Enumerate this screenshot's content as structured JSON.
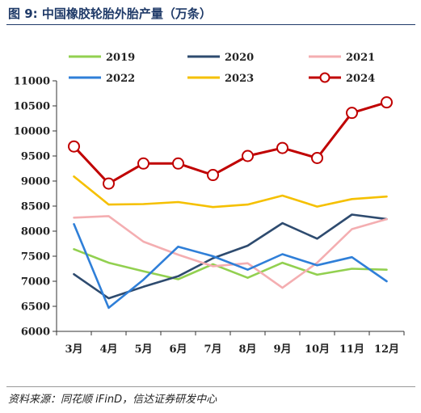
{
  "header": {
    "title": "图 9:  中国橡胶轮胎外胎产量（万条）"
  },
  "footer": {
    "source": "资料来源：同花顺 iFinD，信达证券研发中心"
  },
  "chart_data": {
    "type": "line",
    "title": "",
    "xlabel": "",
    "ylabel": "",
    "categories": [
      "3月",
      "4月",
      "5月",
      "6月",
      "7月",
      "8月",
      "9月",
      "10月",
      "11月",
      "12月"
    ],
    "ylim": [
      6000,
      11000
    ],
    "yticks": [
      6000,
      6500,
      7000,
      7500,
      8000,
      8500,
      9000,
      9500,
      10000,
      10500,
      11000
    ],
    "grid": false,
    "legend_position": "top",
    "series": [
      {
        "name": "2019",
        "color": "#92d050",
        "marker": "none",
        "values": [
          7640,
          7370,
          7200,
          7040,
          7340,
          7070,
          7370,
          7130,
          7250,
          7230
        ]
      },
      {
        "name": "2020",
        "color": "#2e4b6f",
        "marker": "none",
        "values": [
          7140,
          6660,
          6890,
          7100,
          7460,
          7710,
          8160,
          7850,
          8330,
          8240
        ]
      },
      {
        "name": "2021",
        "color": "#f4aeb1",
        "marker": "none",
        "values": [
          8270,
          8300,
          7790,
          7530,
          7300,
          7360,
          6870,
          7370,
          8040,
          8240
        ]
      },
      {
        "name": "2022",
        "color": "#2f7fd8",
        "marker": "none",
        "values": [
          8140,
          6470,
          7030,
          7690,
          7500,
          7230,
          7540,
          7320,
          7480,
          7000
        ]
      },
      {
        "name": "2023",
        "color": "#f5c000",
        "marker": "none",
        "values": [
          9090,
          8530,
          8540,
          8580,
          8480,
          8530,
          8710,
          8490,
          8640,
          8690
        ]
      },
      {
        "name": "2024",
        "color": "#c00000",
        "marker": "circle",
        "values": [
          9690,
          8950,
          9350,
          9350,
          9120,
          9500,
          9660,
          9460,
          10360,
          10570
        ]
      }
    ]
  }
}
